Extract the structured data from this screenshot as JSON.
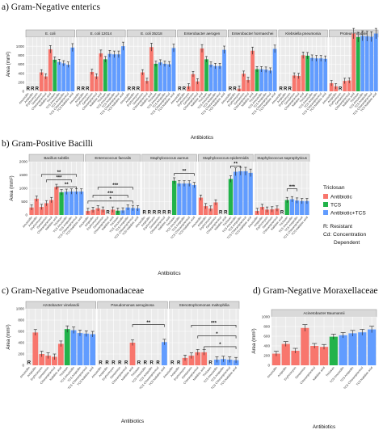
{
  "colors": {
    "antibiotic": "#f8766d",
    "tcs": "#22b34a",
    "combo": "#619cff"
  },
  "legend": {
    "title": "Triclosan",
    "items": [
      "Antibiotic",
      "TCS",
      "Antibiotic+TCS"
    ],
    "notes": [
      "R: Resistant",
      "Cd: Concentration",
      "Dependent"
    ]
  },
  "chart_data": [
    {
      "id": "a",
      "title": "a) Gram-Negative enterics",
      "type": "bar",
      "ylabel": "Area (mm²)",
      "xlabel": "Antibiotics",
      "ylim": [
        0,
        1200
      ],
      "yticks": [
        0,
        200,
        400,
        600,
        800,
        1000
      ],
      "categories": [
        "Amoxicillin",
        "Ampicillin",
        "Erythromycin",
        "Gentamicin",
        "Chloramphenicol",
        "Nalidixic acid",
        "Triclosan",
        "TCS Amoxicillin",
        "TCS Ampicillin",
        "TCS Chloramphenicol",
        "TCS Nalidixic acid"
      ],
      "groups": [
        "Antibiotic",
        "Antibiotic",
        "Antibiotic",
        "Antibiotic",
        "Antibiotic",
        "Antibiotic",
        "TCS",
        "Antibiotic+TCS",
        "Antibiotic+TCS",
        "Antibiotic+TCS",
        "Antibiotic+TCS"
      ],
      "facets": [
        {
          "name": "E. coli",
          "values": [
            0,
            0,
            0,
            420,
            330,
            930,
            700,
            650,
            620,
            590,
            970
          ],
          "labels": [
            "R",
            "R",
            "R",
            "",
            "",
            "",
            "",
            "",
            "",
            "",
            ""
          ]
        },
        {
          "name": "E. coli 12014",
          "values": [
            0,
            0,
            0,
            430,
            330,
            840,
            710,
            830,
            820,
            820,
            1000
          ],
          "labels": [
            "R",
            "R",
            "R",
            "",
            "",
            "",
            "",
            "",
            "",
            "",
            ""
          ]
        },
        {
          "name": "E. coli 35218",
          "values": [
            0,
            0,
            0,
            420,
            230,
            980,
            610,
            640,
            610,
            600,
            960
          ],
          "labels": [
            "R",
            "R",
            "R",
            "",
            "",
            "",
            "",
            "",
            "",
            "",
            ""
          ]
        },
        {
          "name": "Enterobacter aerogen",
          "values": [
            0,
            0,
            110,
            380,
            220,
            950,
            710,
            590,
            560,
            560,
            920
          ],
          "labels": [
            "R",
            "R",
            "",
            "",
            "",
            "",
            "",
            "",
            "",
            "",
            ""
          ]
        },
        {
          "name": "Enterobacter hormaechei",
          "values": [
            0,
            0,
            60,
            390,
            250,
            900,
            490,
            490,
            480,
            460,
            940
          ],
          "labels": [
            "R",
            "R",
            "",
            "",
            "",
            "",
            "",
            "",
            "",
            "",
            ""
          ]
        },
        {
          "name": "Klebsiella pneumonia",
          "values": [
            0,
            0,
            0,
            350,
            340,
            800,
            790,
            740,
            730,
            730,
            720
          ],
          "labels": [
            "R",
            "R",
            "R",
            "",
            "",
            "",
            "",
            "",
            "",
            "",
            ""
          ]
        },
        {
          "name": "Proteus mirabilis",
          "values": [
            180,
            110,
            0,
            230,
            240,
            1280,
            1200,
            1230,
            1220,
            1210,
            1280
          ],
          "labels": [
            "",
            "",
            "R",
            "",
            "",
            "",
            "",
            "",
            "",
            "",
            ""
          ]
        }
      ]
    },
    {
      "id": "b",
      "title": "b) Gram-Positive Bacilli",
      "type": "bar",
      "ylabel": "Area (mm²)",
      "xlabel": "Antibiotics",
      "ylim": [
        0,
        2000
      ],
      "yticks": [
        0,
        500,
        1000,
        1500,
        2000
      ],
      "categories": [
        "Amoxicillin",
        "Ampicillin",
        "Erythromycin",
        "Gentamicin",
        "Chloramphenicol",
        "Nalidixic acid",
        "Triclosan",
        "TCS Amoxicillin",
        "TCS Ampicillin",
        "TCS Chloramphenicol",
        "TCS Nalidixic acid"
      ],
      "groups": [
        "Antibiotic",
        "Antibiotic",
        "Antibiotic",
        "Antibiotic",
        "Antibiotic",
        "Antibiotic",
        "TCS",
        "Antibiotic+TCS",
        "Antibiotic+TCS",
        "Antibiotic+TCS",
        "Antibiotic+TCS"
      ],
      "facets": [
        {
          "name": "Bacillus subtilis",
          "values": [
            280,
            610,
            300,
            440,
            560,
            1050,
            850,
            870,
            880,
            880,
            880
          ],
          "labels": [
            "",
            "",
            "",
            "",
            "",
            "",
            "",
            "",
            "",
            "",
            ""
          ],
          "sig": [
            {
              "x1": 2,
              "x2": 9,
              "level": 0.76,
              "text": "**"
            },
            {
              "x1": 3,
              "x2": 8,
              "level": 0.66,
              "text": "***"
            },
            {
              "x1": 5,
              "x2": 9,
              "level": 0.53,
              "text": "**"
            }
          ]
        },
        {
          "name": "Enterococcus faecalis",
          "values": [
            150,
            190,
            250,
            200,
            0,
            200,
            160,
            170,
            280,
            260,
            250
          ],
          "labels": [
            "",
            "",
            "",
            "",
            "R",
            "",
            "",
            "",
            "",
            "",
            ""
          ],
          "sig": [
            {
              "x1": 2,
              "x2": 9,
              "level": 0.52,
              "text": "***"
            },
            {
              "x1": 1,
              "x2": 8,
              "level": 0.37,
              "text": "***"
            },
            {
              "x1": 0,
              "x2": 9,
              "level": 0.26,
              "text": "*"
            }
          ]
        },
        {
          "name": "Staphylococcus aureus",
          "values": [
            0,
            0,
            0,
            0,
            0,
            0,
            1280,
            1180,
            1180,
            1180,
            1120
          ],
          "labels": [
            "R",
            "R",
            "R",
            "R",
            "R",
            "R",
            "",
            "",
            "",
            "",
            ""
          ],
          "sig": [
            {
              "x1": 6,
              "x2": 10,
              "level": 0.78,
              "text": "**"
            }
          ]
        },
        {
          "name": "Staphylococcus epidermidis",
          "values": [
            650,
            330,
            240,
            470,
            0,
            0,
            1350,
            1620,
            1640,
            1640,
            1580
          ],
          "labels": [
            "",
            "",
            "",
            "",
            "R",
            "R",
            "",
            "",
            "",
            "",
            ""
          ],
          "sig": [
            {
              "x1": 6,
              "x2": 8,
              "level": 0.92,
              "text": "**"
            }
          ]
        },
        {
          "name": "Staphylococcus saprophyticus",
          "values": [
            150,
            300,
            200,
            210,
            240,
            0,
            560,
            590,
            540,
            520,
            520
          ],
          "labels": [
            "",
            "",
            "",
            "",
            "",
            "R",
            "",
            "",
            "",
            "",
            ""
          ],
          "sig": [
            {
              "x1": 6,
              "x2": 8,
              "level": 0.49,
              "text": "***"
            }
          ]
        }
      ]
    },
    {
      "id": "c",
      "title": "c) Gram-Negative Pseudomonadaceae",
      "type": "bar",
      "ylabel": "Area (mm²)",
      "xlabel": "Antibiotics",
      "ylim": [
        0,
        1000
      ],
      "yticks": [
        0,
        200,
        400,
        600,
        800,
        1000
      ],
      "categories": [
        "Amoxicillin",
        "Ampicillin",
        "Erythromycin",
        "Gentamicin",
        "Chloramphenicol",
        "Nalidixic acid",
        "Triclosan",
        "TCS Amoxicillin",
        "TCS Ampicillin",
        "TCS Chloramphenicol",
        "TCS Nalidixic acid"
      ],
      "groups": [
        "Antibiotic",
        "Antibiotic",
        "Antibiotic",
        "Antibiotic",
        "Antibiotic",
        "Antibiotic",
        "TCS",
        "Antibiotic+TCS",
        "Antibiotic+TCS",
        "Antibiotic+TCS",
        "Antibiotic+TCS"
      ],
      "facets": [
        {
          "name": "Azotobacter vinelandii",
          "values": [
            0,
            580,
            200,
            170,
            150,
            380,
            640,
            620,
            570,
            560,
            550
          ],
          "labels": [
            "R",
            "",
            "",
            "",
            "",
            "",
            "",
            "",
            "",
            "",
            ""
          ]
        },
        {
          "name": "Pseudomonas aeruginosa",
          "values": [
            0,
            0,
            0,
            0,
            0,
            400,
            0,
            0,
            0,
            0,
            410
          ],
          "labels": [
            "R",
            "R",
            "R",
            "R",
            "R",
            "",
            "R",
            "R",
            "R",
            "R",
            ""
          ],
          "sig": [
            {
              "x1": 5,
              "x2": 10,
              "level": 0.72,
              "text": "**"
            }
          ]
        },
        {
          "name": "Stenotrophomonas maltophilia",
          "values": [
            0,
            0,
            130,
            170,
            230,
            230,
            0,
            100,
            110,
            100,
            90
          ],
          "labels": [
            "R",
            "R",
            "",
            "",
            "",
            "",
            "R",
            "",
            "",
            "",
            ""
          ],
          "sig": [
            {
              "x1": 3,
              "x2": 10,
              "level": 0.71,
              "text": "***"
            },
            {
              "x1": 4,
              "x2": 10,
              "level": 0.52,
              "text": "*"
            },
            {
              "x1": 5,
              "x2": 10,
              "level": 0.33,
              "text": "*"
            }
          ]
        }
      ]
    },
    {
      "id": "d",
      "title": "d) Gram-Negative Moraxellaceae",
      "type": "bar",
      "ylabel": "Area (mm²)",
      "xlabel": "Antibiotics",
      "ylim": [
        0,
        1000
      ],
      "yticks": [
        0,
        200,
        400,
        600,
        800,
        1000
      ],
      "categories": [
        "Amoxicillin",
        "Ampicillin",
        "Erythromycin",
        "Gentamicin",
        "Chloramphenicol",
        "Nalidixic acid",
        "Triclosan",
        "TCS Amoxicillin",
        "TCS Ampicillin",
        "TCS Chloramphenicol",
        "TCS Nalidixic acid"
      ],
      "groups": [
        "Antibiotic",
        "Antibiotic",
        "Antibiotic",
        "Antibiotic",
        "Antibiotic",
        "Antibiotic",
        "TCS",
        "Antibiotic+TCS",
        "Antibiotic+TCS",
        "Antibiotic+TCS",
        "Antibiotic+TCS"
      ],
      "facets": [
        {
          "name": "Acinetobacter Baumannii",
          "values": [
            240,
            440,
            300,
            770,
            400,
            380,
            590,
            620,
            660,
            680,
            740
          ],
          "labels": [
            "",
            "",
            "",
            "",
            "",
            "",
            "",
            "",
            "",
            "",
            ""
          ]
        }
      ]
    }
  ]
}
